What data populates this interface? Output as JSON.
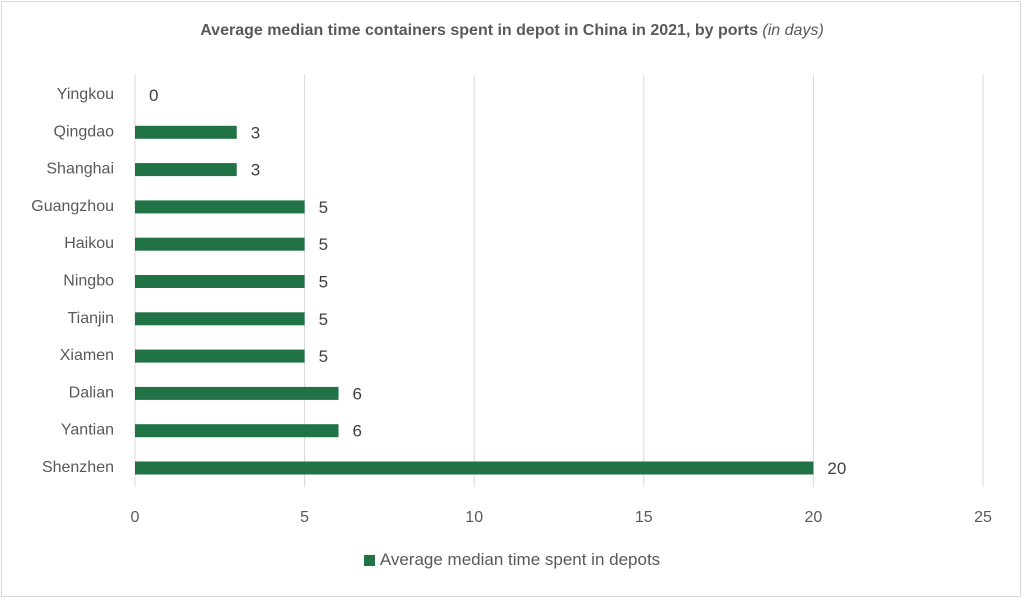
{
  "chart_data": {
    "type": "bar",
    "orientation": "horizontal",
    "title": "Average median time containers spent in depot in China in 2021, by ports",
    "title_suffix": "(in days)",
    "categories": [
      "Yingkou",
      "Qingdao",
      "Shanghai",
      "Guangzhou",
      "Haikou",
      "Ningbo",
      "Tianjin",
      "Xiamen",
      "Dalian",
      "Yantian",
      "Shenzhen"
    ],
    "series": [
      {
        "name": "Average median time spent in depots",
        "values": [
          0,
          3,
          3,
          5,
          5,
          5,
          5,
          5,
          6,
          6,
          20
        ],
        "color": "#217346"
      }
    ],
    "xlim": [
      0,
      25
    ],
    "xticks": [
      "0",
      "5",
      "10",
      "15",
      "20",
      "25"
    ],
    "grid": "vertical",
    "legend": "bottom",
    "data_labels": true
  }
}
